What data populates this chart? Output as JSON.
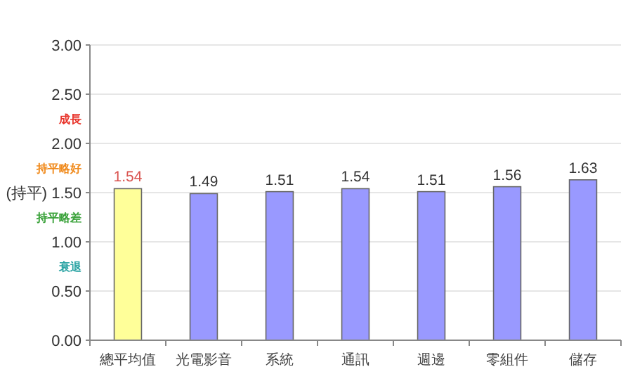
{
  "chart_data": {
    "type": "bar",
    "categories": [
      "總平均值",
      "光電影音",
      "系統",
      "通訊",
      "週邊",
      "零組件",
      "儲存"
    ],
    "values": [
      1.54,
      1.49,
      1.51,
      1.54,
      1.51,
      1.56,
      1.63
    ],
    "colors": [
      "#ffff99",
      "#9999ff",
      "#9999ff",
      "#9999ff",
      "#9999ff",
      "#9999ff",
      "#9999ff"
    ],
    "ylim": [
      0,
      3
    ],
    "yticks": [
      {
        "value": 0,
        "label": "0.00"
      },
      {
        "value": 0.5,
        "label": "0.50"
      },
      {
        "value": 1,
        "label": "1.00"
      },
      {
        "value": 1.5,
        "label": "(持平) 1.50"
      },
      {
        "value": 2,
        "label": "2.00"
      },
      {
        "value": 2.5,
        "label": "2.50"
      },
      {
        "value": 3,
        "label": "3.00"
      }
    ],
    "annotations": [
      "成長",
      "持平略好",
      "持平略差",
      "衰退"
    ],
    "data_labels": true,
    "grid": "y"
  }
}
